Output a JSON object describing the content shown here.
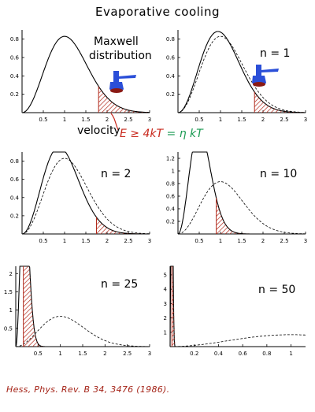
{
  "header": {
    "title": "Evaporative cooling"
  },
  "annotations": {
    "maxwell_line1": "Maxwell",
    "maxwell_line2": "distribution",
    "velocity": "velocity",
    "cutoff_left": "E ≥ 4kT",
    "cutoff_eq": "=",
    "cutoff_right": "η kT"
  },
  "reference": "Hess, Phys. Rev. B 34, 3476 (1986).",
  "colors": {
    "hatch": "#b22a1c",
    "cutoff_label": "#c8281c",
    "eta_label": "#1a9a52",
    "trap_blue": "#2b4fd8",
    "reference": "#a52418"
  },
  "icons": [
    "evaporation-trap-icon"
  ],
  "chart_data": [
    {
      "type": "line",
      "label": "",
      "xticks": [
        0.5,
        1,
        1.5,
        2,
        2.5,
        3
      ],
      "xlim": [
        0,
        3
      ],
      "yticks": [
        0.2,
        0.4,
        0.6,
        0.8
      ],
      "ylim": [
        0,
        0.9
      ],
      "series": [
        {
          "style": "solid",
          "kind": "maxwell",
          "scale": 1.0
        }
      ],
      "cutoff_x": 1.8
    },
    {
      "type": "line",
      "label": "n = 1",
      "xticks": [
        0.5,
        1,
        1.5,
        2,
        2.5,
        3
      ],
      "xlim": [
        0,
        3
      ],
      "yticks": [
        0.2,
        0.4,
        0.6,
        0.8
      ],
      "ylim": [
        0,
        0.9
      ],
      "series": [
        {
          "style": "dashed",
          "kind": "maxwell",
          "scale": 1.0
        },
        {
          "style": "solid",
          "kind": "maxwell",
          "scale": 0.94
        }
      ],
      "cutoff_x": 1.8
    },
    {
      "type": "line",
      "label": "n = 2",
      "xticks": [
        0.5,
        1,
        1.5,
        2,
        2.5,
        3
      ],
      "xlim": [
        0,
        3
      ],
      "yticks": [
        0.2,
        0.4,
        0.6,
        0.8
      ],
      "ylim": [
        0,
        0.9
      ],
      "series": [
        {
          "style": "dashed",
          "kind": "maxwell",
          "scale": 1.0
        },
        {
          "style": "solid",
          "kind": "maxwell",
          "scale": 0.87
        }
      ],
      "cutoff_x": 1.75
    },
    {
      "type": "line",
      "label": "n = 10",
      "xticks": [
        0.5,
        1,
        1.5,
        2,
        2.5,
        3
      ],
      "xlim": [
        0,
        3
      ],
      "yticks": [
        0.2,
        0.4,
        0.6,
        0.8,
        1,
        1.2
      ],
      "ylim": [
        0,
        1.3
      ],
      "series": [
        {
          "style": "dashed",
          "kind": "maxwell",
          "scale": 1.0
        },
        {
          "style": "solid",
          "kind": "maxwell",
          "scale": 0.5
        }
      ],
      "cutoff_x": 0.9
    },
    {
      "type": "line",
      "label": "n = 25",
      "xticks": [
        0.5,
        1,
        1.5,
        2,
        2.5,
        3
      ],
      "xlim": [
        0,
        3
      ],
      "yticks": [
        0.5,
        1,
        1.5,
        2
      ],
      "ylim": [
        0,
        2.2
      ],
      "series": [
        {
          "style": "dashed",
          "kind": "maxwell",
          "scale": 1.0
        },
        {
          "style": "solid",
          "kind": "maxwell",
          "scale": 0.19
        }
      ],
      "cutoff_x": 0.17
    },
    {
      "type": "line",
      "label": "n = 50",
      "xticks": [
        0.2,
        0.4,
        0.6,
        0.8,
        1
      ],
      "xlim": [
        0,
        1.12
      ],
      "yticks": [
        1,
        2,
        3,
        4,
        5
      ],
      "ylim": [
        0,
        5.6
      ],
      "series": [
        {
          "style": "dashed",
          "kind": "maxwell",
          "scale": 1.0
        },
        {
          "style": "solid",
          "kind": "maxwell",
          "scale": 0.012
        }
      ],
      "cutoff_x": 0.015
    }
  ]
}
